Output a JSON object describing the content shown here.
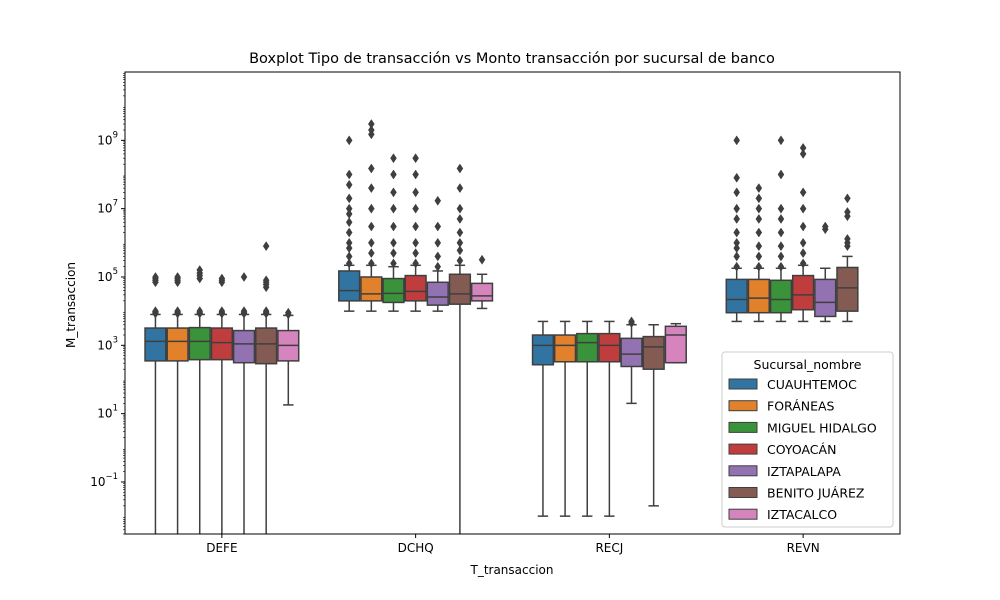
{
  "chart_data": {
    "type": "boxplot",
    "title": "Boxplot Tipo de transacción vs Monto transacción por sucursal de banco",
    "xlabel": "T_transaccion",
    "ylabel": "M_transaccion",
    "yscale": "log",
    "ylim": [
      0.003,
      100000000000
    ],
    "yticks": [
      {
        "value": 0.1,
        "base": "10",
        "exp": "−1"
      },
      {
        "value": 10,
        "base": "10",
        "exp": "1"
      },
      {
        "value": 1000,
        "base": "10",
        "exp": "3"
      },
      {
        "value": 100000,
        "base": "10",
        "exp": "5"
      },
      {
        "value": 10000000,
        "base": "10",
        "exp": "7"
      },
      {
        "value": 1000000000,
        "base": "10",
        "exp": "9"
      }
    ],
    "categories": [
      "DEFE",
      "DCHQ",
      "RECJ",
      "REVN"
    ],
    "legend": {
      "title": "Sucursal_nombre",
      "position": "lower-right"
    },
    "series": [
      {
        "name": "CUAUHTEMOC",
        "color": "#3274a1",
        "boxes": [
          {
            "whislo": 0.001,
            "q1": 350,
            "med": 1300,
            "q3": 3200,
            "whishi": 8000,
            "fliers": [
              8500,
              9000,
              9500,
              10000,
              70000,
              80000,
              90000,
              100000
            ]
          },
          {
            "whislo": 10000,
            "q1": 20000,
            "med": 40000,
            "q3": 150000,
            "whishi": 220000,
            "fliers": [
              250000,
              400000,
              700000,
              1000000,
              2000000,
              4000000,
              7000000,
              10000000,
              20000000,
              50000000,
              100000000,
              1000000000
            ]
          },
          {
            "whislo": 0.01,
            "q1": 270,
            "med": 1000,
            "q3": 2000,
            "whishi": 5000,
            "fliers": []
          },
          {
            "whislo": 5000,
            "q1": 9000,
            "med": 22000,
            "q3": 85000,
            "whishi": 180000,
            "fliers": [
              200000,
              400000,
              700000,
              1000000,
              2000000,
              5000000,
              10000000,
              30000000,
              80000000,
              1000000000
            ]
          }
        ]
      },
      {
        "name": "FORÁNEAS",
        "color": "#e1812c",
        "boxes": [
          {
            "whislo": 0.001,
            "q1": 350,
            "med": 1300,
            "q3": 3200,
            "whishi": 8000,
            "fliers": [
              8500,
              9000,
              10000,
              70000,
              80000,
              90000,
              100000
            ]
          },
          {
            "whislo": 10000,
            "q1": 20000,
            "med": 32000,
            "q3": 100000,
            "whishi": 220000,
            "fliers": [
              250000,
              500000,
              1000000,
              3000000,
              10000000,
              40000000,
              150000000,
              1500000000,
              2000000000,
              3000000000
            ]
          },
          {
            "whislo": 0.01,
            "q1": 330,
            "med": 1000,
            "q3": 2000,
            "whishi": 5000,
            "fliers": []
          },
          {
            "whislo": 5000,
            "q1": 9000,
            "med": 24000,
            "q3": 85000,
            "whishi": 180000,
            "fliers": [
              200000,
              400000,
              800000,
              2000000,
              5000000,
              10000000,
              20000000,
              40000000
            ]
          }
        ]
      },
      {
        "name": "MIGUEL HIDALGO",
        "color": "#3a923a",
        "boxes": [
          {
            "whislo": 0.001,
            "q1": 380,
            "med": 1300,
            "q3": 3300,
            "whishi": 8000,
            "fliers": [
              8500,
              9000,
              10000,
              90000,
              110000,
              130000,
              160000
            ]
          },
          {
            "whislo": 10000,
            "q1": 18000,
            "med": 33000,
            "q3": 90000,
            "whishi": 200000,
            "fliers": [
              250000,
              500000,
              1000000,
              3000000,
              10000000,
              30000000,
              100000000,
              300000000
            ]
          },
          {
            "whislo": 0.01,
            "q1": 330,
            "med": 1200,
            "q3": 2200,
            "whishi": 5000,
            "fliers": []
          },
          {
            "whislo": 5000,
            "q1": 9000,
            "med": 22000,
            "q3": 80000,
            "whishi": 180000,
            "fliers": [
              200000,
              400000,
              800000,
              2000000,
              5000000,
              10000000,
              100000000,
              1000000000
            ]
          }
        ]
      },
      {
        "name": "COYOACÁN",
        "color": "#c03d3e",
        "boxes": [
          {
            "whislo": 0.001,
            "q1": 380,
            "med": 1200,
            "q3": 3200,
            "whishi": 8000,
            "fliers": [
              8500,
              9000,
              10000,
              70000,
              80000,
              90000
            ]
          },
          {
            "whislo": 10000,
            "q1": 20000,
            "med": 38000,
            "q3": 110000,
            "whishi": 220000,
            "fliers": [
              250000,
              500000,
              1000000,
              3000000,
              10000000,
              30000000,
              100000000,
              300000000
            ]
          },
          {
            "whislo": 0.01,
            "q1": 330,
            "med": 1000,
            "q3": 2200,
            "whishi": 5000,
            "fliers": []
          },
          {
            "whislo": 5000,
            "q1": 11000,
            "med": 30000,
            "q3": 110000,
            "whishi": 220000,
            "fliers": [
              250000,
              500000,
              1000000,
              3000000,
              10000000,
              30000000,
              400000000,
              600000000
            ]
          }
        ]
      },
      {
        "name": "IZTAPALAPA",
        "color": "#9372b2",
        "boxes": [
          {
            "whislo": 0.001,
            "q1": 310,
            "med": 1100,
            "q3": 2700,
            "whishi": 8000,
            "fliers": [
              8500,
              9000,
              10000,
              100000
            ]
          },
          {
            "whislo": 10000,
            "q1": 15000,
            "med": 26000,
            "q3": 70000,
            "whishi": 150000,
            "fliers": [
              200000,
              400000,
              1000000,
              3000000,
              17000000
            ]
          },
          {
            "whislo": 20,
            "q1": 240,
            "med": 550,
            "q3": 1600,
            "whishi": 4000,
            "fliers": [
              4500,
              5000
            ]
          },
          {
            "whislo": 5000,
            "q1": 7000,
            "med": 18000,
            "q3": 85000,
            "whishi": 180000,
            "fliers": [
              2500000,
              3000000
            ]
          }
        ]
      },
      {
        "name": "BENITO JUÁREZ",
        "color": "#845b53",
        "boxes": [
          {
            "whislo": 0.001,
            "q1": 290,
            "med": 1100,
            "q3": 3200,
            "whishi": 8000,
            "fliers": [
              8500,
              9000,
              10000,
              50000,
              60000,
              70000,
              80000,
              800000
            ]
          },
          {
            "whislo": 0.001,
            "q1": 16000,
            "med": 32000,
            "q3": 120000,
            "whishi": 220000,
            "fliers": [
              300000,
              600000,
              1000000,
              2000000,
              5000000,
              10000000,
              40000000,
              150000000
            ]
          },
          {
            "whislo": 0.02,
            "q1": 200,
            "med": 900,
            "q3": 1800,
            "whishi": 4000,
            "fliers": []
          },
          {
            "whislo": 5000,
            "q1": 10000,
            "med": 48000,
            "q3": 190000,
            "whishi": 400000,
            "fliers": [
              800000,
              1000000,
              1300000,
              6000000,
              8000000,
              20000000
            ]
          }
        ]
      },
      {
        "name": "IZTACALCO",
        "color": "#d684bd",
        "boxes": [
          {
            "whislo": 18,
            "q1": 350,
            "med": 1000,
            "q3": 2700,
            "whishi": 7500,
            "fliers": [
              8000,
              9000
            ]
          },
          {
            "whislo": 12000,
            "q1": 20000,
            "med": 28000,
            "q3": 65000,
            "whishi": 120000,
            "fliers": [
              320000
            ]
          },
          {
            "whislo": 310,
            "q1": 310,
            "med": 2000,
            "q3": 3600,
            "whishi": 4300,
            "fliers": []
          },
          {
            "whislo": null,
            "q1": null,
            "med": null,
            "q3": null,
            "whishi": null,
            "fliers": []
          }
        ]
      }
    ]
  }
}
